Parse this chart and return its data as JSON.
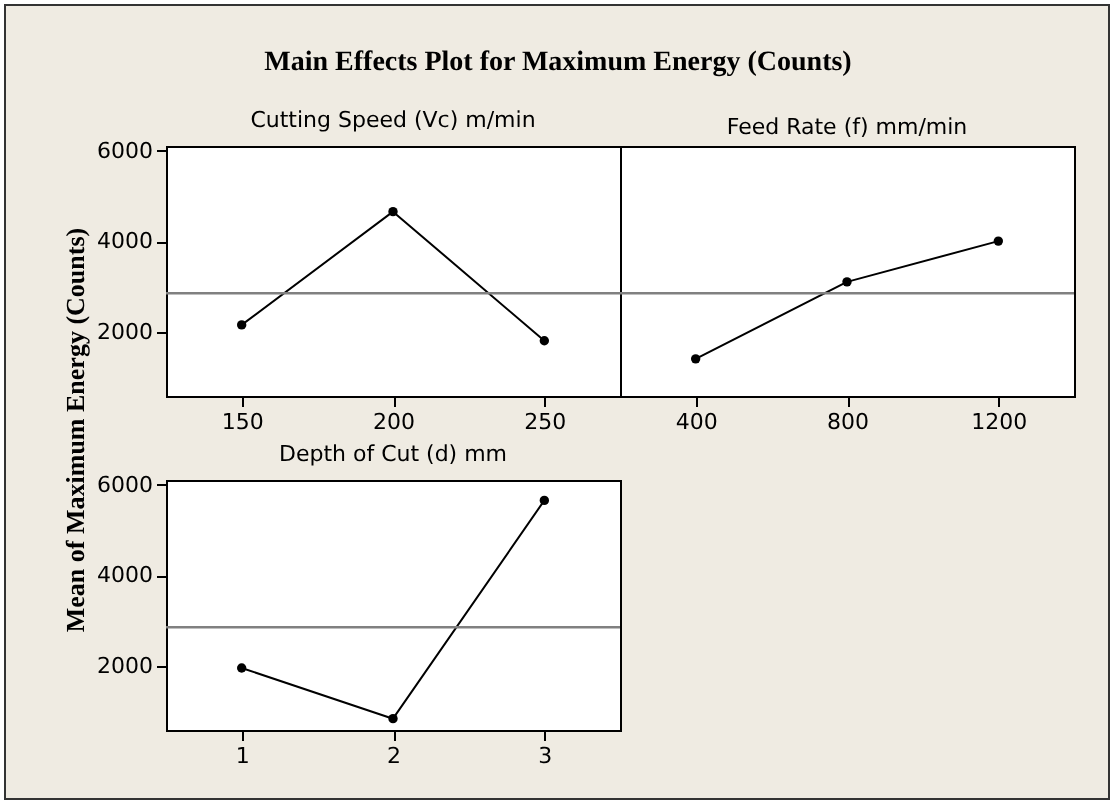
{
  "chart_data": [
    {
      "type": "line",
      "title": "Main Effects Plot for Maximum Energy (Counts)",
      "ylabel": "Mean of Maximum Energy (Counts)",
      "subtitle": "Cutting Speed (Vc) m/min",
      "categories": [
        "150",
        "200",
        "250"
      ],
      "series": [
        {
          "color": "#000000",
          "values": [
            2150,
            4650,
            1800
          ]
        }
      ],
      "ylim": [
        580,
        6100
      ],
      "yticks": [
        2000,
        4000,
        6000
      ],
      "ref_lines": [
        {
          "axis": "y",
          "value": 2850,
          "color": "#808080"
        }
      ],
      "marker": "circle",
      "grid": false
    },
    {
      "type": "line",
      "subtitle": "Feed Rate (f) mm/min",
      "categories": [
        "400",
        "800",
        "1200"
      ],
      "series": [
        {
          "color": "#000000",
          "values": [
            1400,
            3100,
            4000
          ]
        }
      ],
      "ylim": [
        580,
        6100
      ],
      "yticks": [
        2000,
        4000,
        6000
      ],
      "tick_labels": "x",
      "ref_lines": [
        {
          "axis": "y",
          "value": 2850,
          "color": "#808080"
        }
      ],
      "marker": "circle",
      "grid": false
    },
    {
      "type": "line",
      "subtitle": "Depth of Cut (d) mm",
      "categories": [
        "1",
        "2",
        "3"
      ],
      "series": [
        {
          "color": "#000000",
          "values": [
            1950,
            830,
            5650
          ]
        }
      ],
      "ylim": [
        580,
        6100
      ],
      "yticks": [
        2000,
        4000,
        6000
      ],
      "ref_lines": [
        {
          "axis": "y",
          "value": 2850,
          "color": "#808080"
        }
      ],
      "marker": "circle",
      "grid": false
    }
  ]
}
